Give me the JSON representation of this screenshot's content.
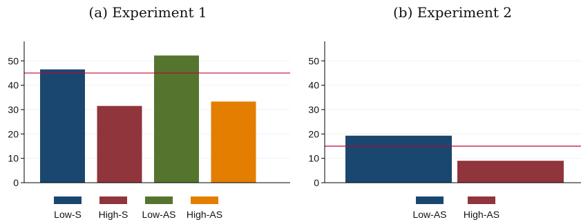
{
  "chart_data": [
    {
      "type": "bar",
      "title": "(a) Experiment 1",
      "categories": [
        "Low-S",
        "High-S",
        "Low-AS",
        "High-AS"
      ],
      "values": [
        46.5,
        31.5,
        52.2,
        33.3
      ],
      "colors": [
        "#1a476f",
        "#90353b",
        "#55752f",
        "#e37e00"
      ],
      "reference_line": 45,
      "reference_line_color": "#c10534",
      "ylim": [
        0,
        58
      ],
      "yticks": [
        0,
        10,
        20,
        30,
        40,
        50
      ],
      "xlabel": "",
      "ylabel": "",
      "grid": true,
      "legend": {
        "position": "bottom",
        "labels": [
          "Low-S",
          "High-S",
          "Low-AS",
          "High-AS"
        ]
      }
    },
    {
      "type": "bar",
      "title": "(b) Experiment 2",
      "categories": [
        "Low-AS",
        "High-AS"
      ],
      "values": [
        19.3,
        9.0
      ],
      "colors": [
        "#1a476f",
        "#90353b"
      ],
      "reference_line": 15,
      "reference_line_color": "#c10534",
      "ylim": [
        0,
        58
      ],
      "yticks": [
        0,
        10,
        20,
        30,
        40,
        50
      ],
      "xlabel": "",
      "ylabel": "",
      "grid": true,
      "legend": {
        "position": "bottom",
        "labels": [
          "Low-AS",
          "High-AS"
        ]
      }
    }
  ]
}
